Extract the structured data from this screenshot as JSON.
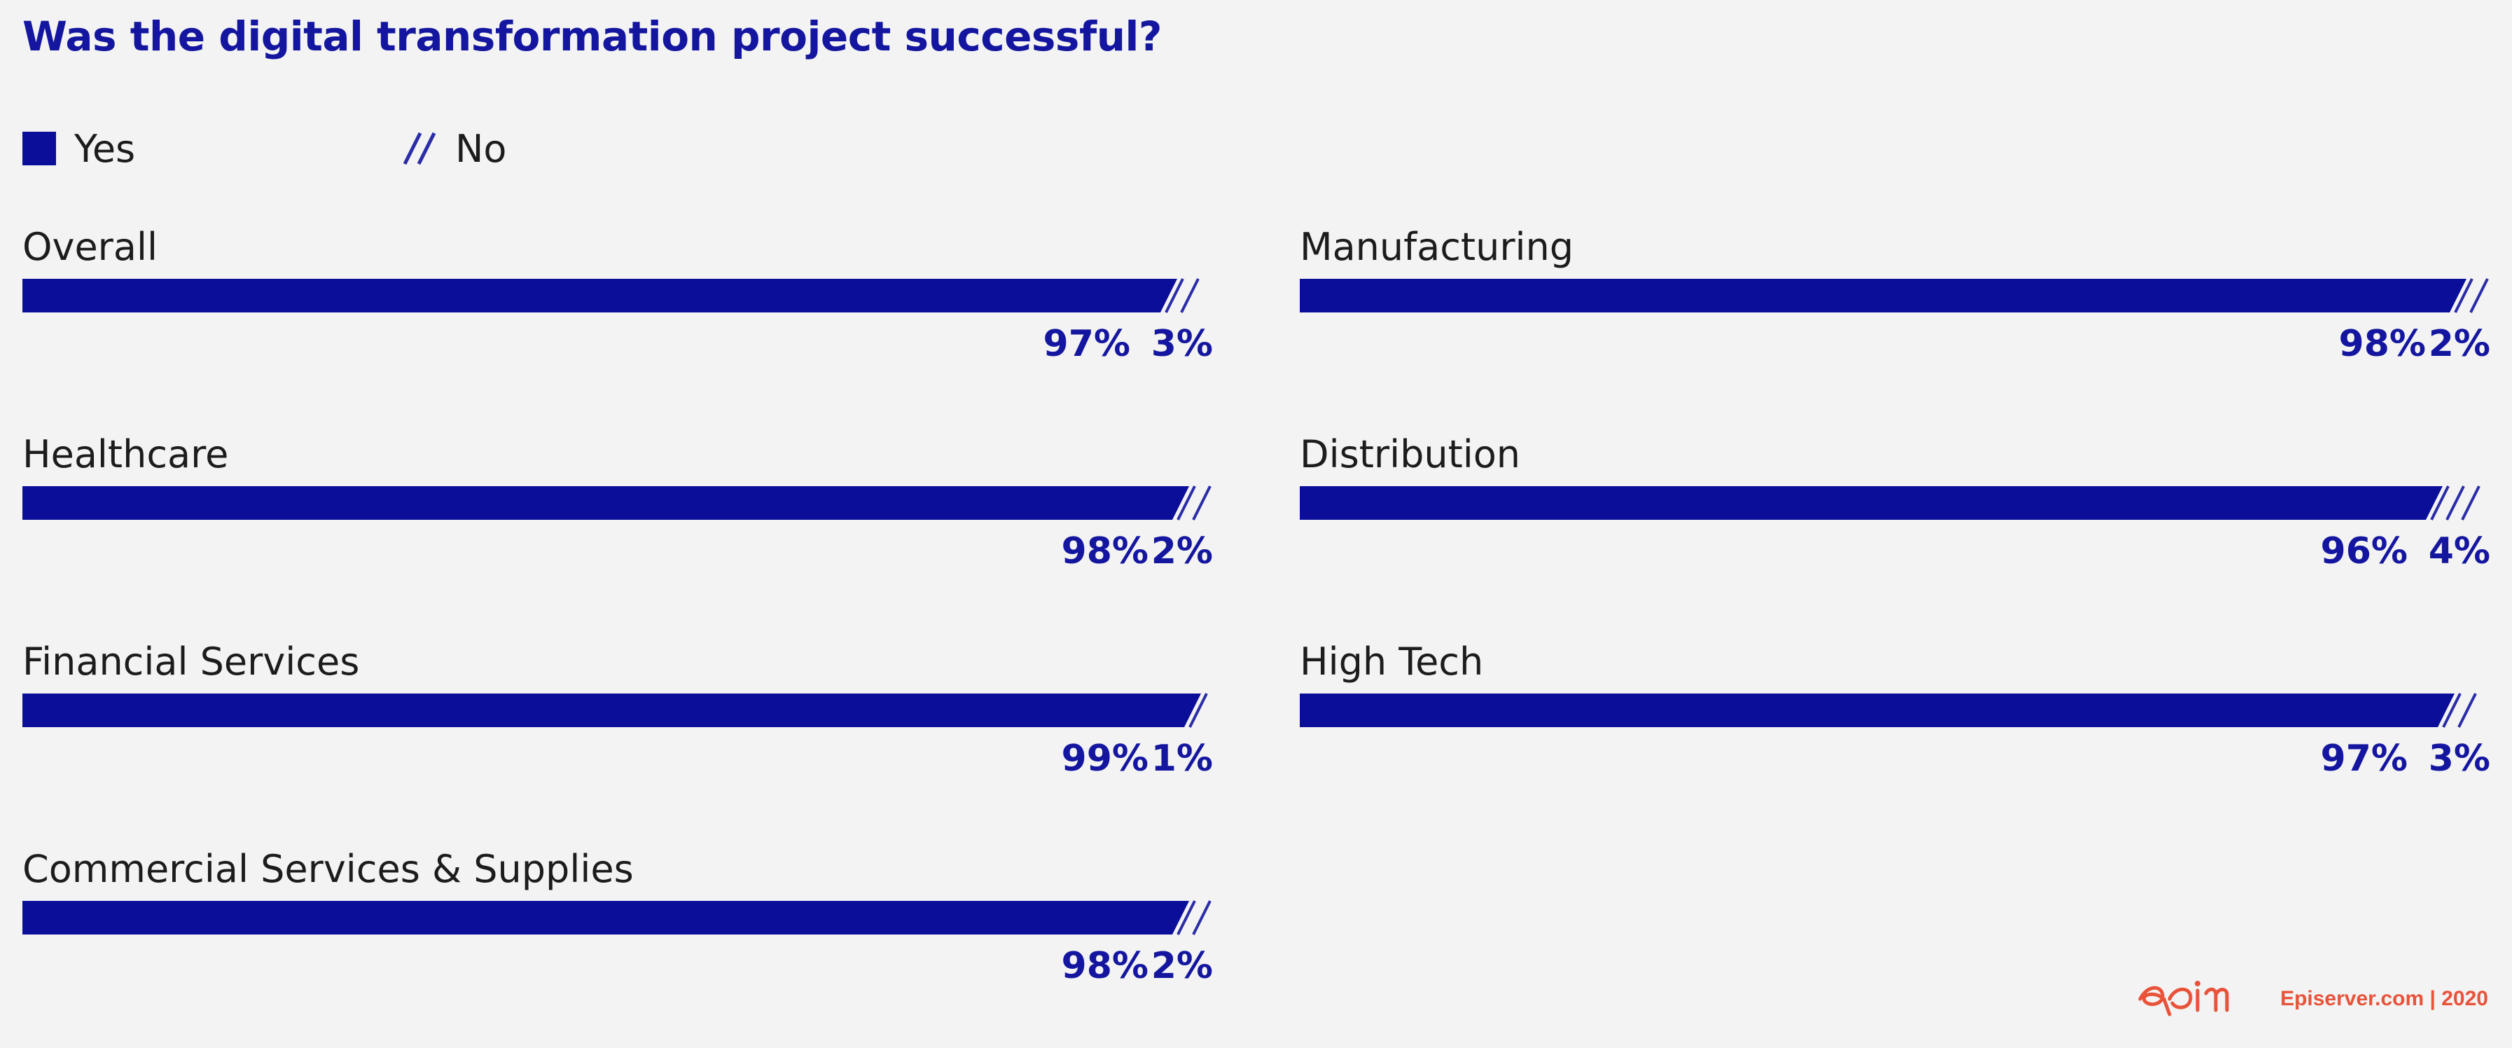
{
  "chart_data": {
    "type": "bar",
    "title": "Was the digital transformation project successful?",
    "legend": [
      {
        "name": "Yes",
        "style": "solid"
      },
      {
        "name": "No",
        "style": "hatched"
      }
    ],
    "legend_placement": "top-left",
    "categories": [
      "Overall",
      "Healthcare",
      "Financial Services",
      "Commercial Services & Supplies",
      "Manufacturing",
      "Distribution",
      "High Tech"
    ],
    "series": [
      {
        "name": "Yes",
        "values": [
          97,
          98,
          99,
          98,
          98,
          96,
          97
        ]
      },
      {
        "name": "No",
        "values": [
          3,
          2,
          1,
          2,
          2,
          4,
          3
        ]
      }
    ],
    "value_labels": {
      "yes": [
        "97%",
        "98%",
        "99%",
        "98%",
        "98%",
        "96%",
        "97%"
      ],
      "no": [
        "3%",
        "2%",
        "1%",
        "2%",
        "2%",
        "4%",
        "3%"
      ]
    },
    "xlim": [
      0,
      100
    ],
    "stacked": true,
    "grid": false
  },
  "colors": {
    "primary": "#0b0e99",
    "title": "#1416a0",
    "background": "#f3f3f3",
    "brand": "#e8533a"
  },
  "footer": {
    "text": "Episerver.com  |  2020",
    "logo_icon": "epi-logo-icon"
  }
}
